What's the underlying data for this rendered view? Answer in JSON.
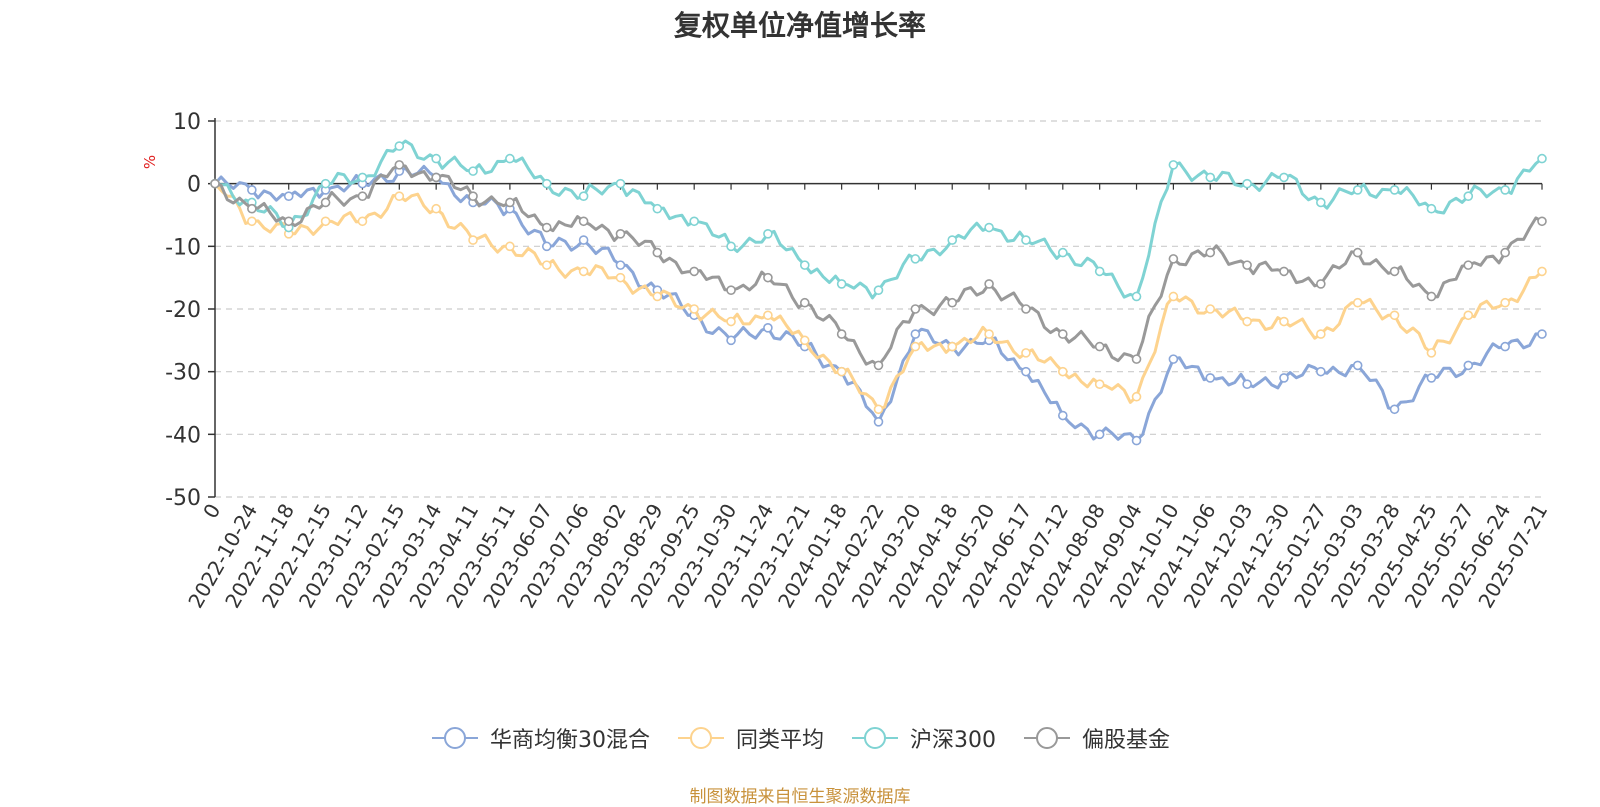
{
  "chart_data": {
    "type": "line",
    "title": "复权单位净值增长率",
    "ylabel": "%",
    "ylim": [
      -50,
      10
    ],
    "yticks": [
      "10",
      "0",
      "-10",
      "-20",
      "-30",
      "-40",
      "-50"
    ],
    "xtick_labels": [
      "0",
      "2022-10-24",
      "2022-11-18",
      "2022-12-15",
      "2023-01-12",
      "2023-02-15",
      "2023-03-14",
      "2023-04-11",
      "2023-05-11",
      "2023-06-07",
      "2023-07-06",
      "2023-08-02",
      "2023-08-29",
      "2023-09-25",
      "2023-10-30",
      "2023-11-24",
      "2023-12-21",
      "2024-01-18",
      "2024-02-22",
      "2024-03-20",
      "2024-04-18",
      "2024-05-20",
      "2024-06-17",
      "2024-07-12",
      "2024-08-08",
      "2024-09-04",
      "2024-10-10",
      "2024-11-06",
      "2024-12-03",
      "2024-12-30",
      "2025-01-27",
      "2025-03-03",
      "2025-03-28",
      "2025-04-25",
      "2025-05-27",
      "2025-06-24",
      "2025-07-21"
    ],
    "grid": true,
    "legend_position": "bottom",
    "series": [
      {
        "name": "华商均衡30混合",
        "color": "#8aa6d8",
        "values": [
          0,
          -1,
          -2,
          -1,
          0,
          2,
          1,
          -3,
          -4,
          -10,
          -9,
          -13,
          -17,
          -21,
          -25,
          -23,
          -26,
          -30,
          -38,
          -24,
          -26,
          -25,
          -30,
          -37,
          -40,
          -41,
          -28,
          -31,
          -32,
          -31,
          -30,
          -29,
          -36,
          -31,
          -29,
          -26,
          -24
        ]
      },
      {
        "name": "同类平均",
        "color": "#fdd38e",
        "values": [
          0,
          -6,
          -8,
          -6,
          -6,
          -2,
          -4,
          -9,
          -10,
          -13,
          -14,
          -15,
          -18,
          -20,
          -22,
          -21,
          -25,
          -30,
          -36,
          -26,
          -26,
          -24,
          -27,
          -30,
          -32,
          -34,
          -18,
          -20,
          -22,
          -22,
          -24,
          -19,
          -21,
          -27,
          -21,
          -19,
          -14
        ]
      },
      {
        "name": "沪深300",
        "color": "#7fd3d3",
        "values": [
          0,
          -3,
          -7,
          0,
          1,
          6,
          4,
          2,
          4,
          0,
          -2,
          0,
          -4,
          -6,
          -10,
          -8,
          -13,
          -16,
          -17,
          -12,
          -9,
          -7,
          -9,
          -11,
          -14,
          -18,
          3,
          1,
          0,
          1,
          -3,
          -1,
          -1,
          -4,
          -2,
          -1,
          4
        ]
      },
      {
        "name": "偏股基金",
        "color": "#999999",
        "values": [
          0,
          -4,
          -6,
          -3,
          -2,
          3,
          1,
          -2,
          -3,
          -7,
          -6,
          -8,
          -11,
          -14,
          -17,
          -15,
          -19,
          -24,
          -29,
          -20,
          -19,
          -16,
          -20,
          -24,
          -26,
          -28,
          -12,
          -11,
          -13,
          -14,
          -16,
          -11,
          -14,
          -18,
          -13,
          -11,
          -6
        ]
      }
    ]
  },
  "footer": "制图数据来自恒生聚源数据库"
}
